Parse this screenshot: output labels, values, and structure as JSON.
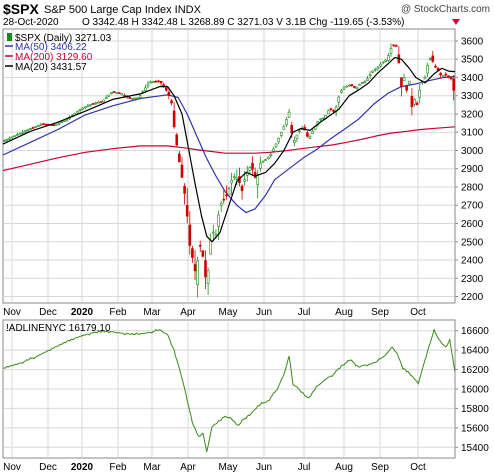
{
  "header": {
    "symbol": "$SPX",
    "name": "S&P 500 Large Cap Index INDX",
    "date": "28-Oct-2020",
    "quote": "O 3342.48  H 3342.48  L 3268.89  C 3271.03  V 3.1B  Chg -119.65 (-3.53%)",
    "watermark": "@ StockCharts.com"
  },
  "colors": {
    "price_up": "#1a8a1a",
    "price_down": "#cc0000",
    "ma50": "#3333aa",
    "ma200": "#cc0033",
    "ma20": "#000000",
    "breadth": "#3a8a1a",
    "grid": "#d8d8d8"
  },
  "chart_data": [
    {
      "type": "candlestick",
      "legend": [
        {
          "label": "$SPX (Daily) 3271.03",
          "color": "#1a8a1a",
          "marker": "candle"
        },
        {
          "label": "MA(50) 3406.22",
          "color": "#3333aa",
          "marker": "line"
        },
        {
          "label": "MA(200) 3129.60",
          "color": "#cc0033",
          "marker": "line"
        },
        {
          "label": "MA(20) 3431.57",
          "color": "#000000",
          "marker": "line"
        }
      ],
      "x_labels": [
        "Nov",
        "Dec",
        "2020",
        "Feb",
        "Mar",
        "Apr",
        "May",
        "Jun",
        "Jul",
        "Aug",
        "Sep",
        "Oct"
      ],
      "y_ticks": [
        2200,
        2300,
        2400,
        2500,
        2600,
        2700,
        2800,
        2900,
        3000,
        3100,
        3200,
        3300,
        3400,
        3500,
        3600
      ],
      "ylim": [
        2170,
        3660
      ],
      "close_path": [
        [
          0,
          3050
        ],
        [
          10,
          3085
        ],
        [
          21,
          3120
        ],
        [
          30,
          3145
        ],
        [
          40,
          3140
        ],
        [
          50,
          3175
        ],
        [
          60,
          3230
        ],
        [
          68,
          3255
        ],
        [
          76,
          3270
        ],
        [
          84,
          3325
        ],
        [
          91,
          3310
        ],
        [
          97,
          3285
        ],
        [
          104,
          3290
        ],
        [
          112,
          3375
        ],
        [
          120,
          3380
        ],
        [
          126,
          3320
        ],
        [
          129,
          3260
        ],
        [
          131,
          3130
        ],
        [
          134,
          2980
        ],
        [
          138,
          2810
        ],
        [
          140,
          2720
        ],
        [
          143,
          2480
        ],
        [
          146,
          2380
        ],
        [
          148,
          2300
        ],
        [
          150,
          2490
        ],
        [
          152,
          2460
        ],
        [
          154,
          2380
        ],
        [
          156,
          2235
        ],
        [
          158,
          2450
        ],
        [
          160,
          2560
        ],
        [
          163,
          2540
        ],
        [
          166,
          2700
        ],
        [
          170,
          2740
        ],
        [
          173,
          2790
        ],
        [
          176,
          2860
        ],
        [
          180,
          2845
        ],
        [
          183,
          2780
        ],
        [
          186,
          2870
        ],
        [
          190,
          2920
        ],
        [
          194,
          2830
        ],
        [
          197,
          2930
        ],
        [
          201,
          2950
        ],
        [
          205,
          2980
        ],
        [
          210,
          3050
        ],
        [
          215,
          3130
        ],
        [
          219,
          3210
        ],
        [
          222,
          3040
        ],
        [
          226,
          3100
        ],
        [
          230,
          3130
        ],
        [
          234,
          3060
        ],
        [
          238,
          3120
        ],
        [
          242,
          3170
        ],
        [
          246,
          3180
        ],
        [
          250,
          3230
        ],
        [
          254,
          3210
        ],
        [
          258,
          3320
        ],
        [
          262,
          3350
        ],
        [
          266,
          3360
        ],
        [
          270,
          3340
        ],
        [
          274,
          3370
        ],
        [
          278,
          3380
        ],
        [
          282,
          3430
        ],
        [
          286,
          3450
        ],
        [
          290,
          3480
        ],
        [
          294,
          3500
        ],
        [
          298,
          3580
        ],
        [
          301,
          3575
        ],
        [
          303,
          3480
        ],
        [
          305,
          3350
        ],
        [
          307,
          3400
        ],
        [
          309,
          3330
        ],
        [
          311,
          3380
        ],
        [
          313,
          3240
        ],
        [
          315,
          3280
        ],
        [
          317,
          3250
        ],
        [
          320,
          3370
        ],
        [
          323,
          3400
        ],
        [
          326,
          3500
        ],
        [
          328,
          3510
        ],
        [
          330,
          3465
        ],
        [
          333,
          3440
        ],
        [
          336,
          3400
        ],
        [
          338,
          3420
        ],
        [
          341,
          3400
        ],
        [
          344,
          3390
        ],
        [
          346,
          3270
        ]
      ],
      "ma50_path": [
        [
          0,
          2975
        ],
        [
          21,
          3045
        ],
        [
          42,
          3115
        ],
        [
          63,
          3195
        ],
        [
          84,
          3245
        ],
        [
          105,
          3285
        ],
        [
          126,
          3305
        ],
        [
          134,
          3290
        ],
        [
          141,
          3200
        ],
        [
          148,
          3085
        ],
        [
          156,
          2955
        ],
        [
          163,
          2860
        ],
        [
          170,
          2775
        ],
        [
          179,
          2700
        ],
        [
          186,
          2660
        ],
        [
          193,
          2680
        ],
        [
          201,
          2755
        ],
        [
          208,
          2840
        ],
        [
          219,
          2900
        ],
        [
          230,
          2960
        ],
        [
          240,
          3005
        ],
        [
          250,
          3060
        ],
        [
          261,
          3115
        ],
        [
          272,
          3170
        ],
        [
          284,
          3255
        ],
        [
          295,
          3315
        ],
        [
          305,
          3350
        ],
        [
          316,
          3365
        ],
        [
          326,
          3382
        ],
        [
          336,
          3398
        ],
        [
          346,
          3406
        ]
      ],
      "ma200_path": [
        [
          0,
          2890
        ],
        [
          21,
          2925
        ],
        [
          42,
          2960
        ],
        [
          63,
          2990
        ],
        [
          84,
          3010
        ],
        [
          105,
          3025
        ],
        [
          126,
          3025
        ],
        [
          138,
          3015
        ],
        [
          148,
          3005
        ],
        [
          159,
          2995
        ],
        [
          170,
          2985
        ],
        [
          182,
          2985
        ],
        [
          193,
          2985
        ],
        [
          205,
          2990
        ],
        [
          216,
          2998
        ],
        [
          228,
          3010
        ],
        [
          240,
          3020
        ],
        [
          252,
          3030
        ],
        [
          263,
          3045
        ],
        [
          274,
          3060
        ],
        [
          286,
          3080
        ],
        [
          297,
          3095
        ],
        [
          309,
          3105
        ],
        [
          320,
          3115
        ],
        [
          332,
          3122
        ],
        [
          346,
          3130
        ]
      ],
      "ma20_path": [
        [
          0,
          3035
        ],
        [
          21,
          3105
        ],
        [
          42,
          3155
        ],
        [
          63,
          3215
        ],
        [
          84,
          3280
        ],
        [
          105,
          3310
        ],
        [
          120,
          3350
        ],
        [
          126,
          3350
        ],
        [
          131,
          3300
        ],
        [
          137,
          3200
        ],
        [
          141,
          3050
        ],
        [
          147,
          2820
        ],
        [
          152,
          2640
        ],
        [
          156,
          2530
        ],
        [
          160,
          2500
        ],
        [
          166,
          2550
        ],
        [
          173,
          2700
        ],
        [
          179,
          2830
        ],
        [
          186,
          2880
        ],
        [
          193,
          2860
        ],
        [
          201,
          2880
        ],
        [
          208,
          2930
        ],
        [
          215,
          3000
        ],
        [
          222,
          3100
        ],
        [
          228,
          3120
        ],
        [
          235,
          3110
        ],
        [
          242,
          3150
        ],
        [
          250,
          3190
        ],
        [
          257,
          3225
        ],
        [
          265,
          3300
        ],
        [
          272,
          3330
        ],
        [
          280,
          3370
        ],
        [
          287,
          3425
        ],
        [
          294,
          3470
        ],
        [
          300,
          3510
        ],
        [
          305,
          3500
        ],
        [
          311,
          3450
        ],
        [
          316,
          3400
        ],
        [
          323,
          3370
        ],
        [
          330,
          3420
        ],
        [
          336,
          3450
        ],
        [
          341,
          3435
        ],
        [
          346,
          3432
        ]
      ]
    },
    {
      "type": "line",
      "title": "!ADLINENYC 16179.10",
      "x_labels": [
        "Nov",
        "Dec",
        "2020",
        "Feb",
        "Mar",
        "Apr",
        "May",
        "Jun",
        "Jul",
        "Aug",
        "Sep",
        "Oct"
      ],
      "y_ticks": [
        15400,
        15600,
        15800,
        16000,
        16200,
        16400,
        16600
      ],
      "ylim": [
        15300,
        16700
      ],
      "path": [
        [
          0,
          16210
        ],
        [
          12,
          16260
        ],
        [
          25,
          16330
        ],
        [
          38,
          16420
        ],
        [
          50,
          16500
        ],
        [
          63,
          16560
        ],
        [
          76,
          16600
        ],
        [
          88,
          16580
        ],
        [
          100,
          16560
        ],
        [
          112,
          16580
        ],
        [
          120,
          16610
        ],
        [
          126,
          16560
        ],
        [
          131,
          16400
        ],
        [
          136,
          16160
        ],
        [
          140,
          15950
        ],
        [
          145,
          15650
        ],
        [
          150,
          15500
        ],
        [
          153,
          15550
        ],
        [
          156,
          15350
        ],
        [
          160,
          15610
        ],
        [
          165,
          15660
        ],
        [
          170,
          15720
        ],
        [
          175,
          15690
        ],
        [
          180,
          15620
        ],
        [
          185,
          15700
        ],
        [
          190,
          15750
        ],
        [
          197,
          15840
        ],
        [
          203,
          15880
        ],
        [
          210,
          16000
        ],
        [
          216,
          16180
        ],
        [
          219,
          16350
        ],
        [
          222,
          16050
        ],
        [
          228,
          15980
        ],
        [
          234,
          15900
        ],
        [
          240,
          16020
        ],
        [
          247,
          16100
        ],
        [
          253,
          16150
        ],
        [
          259,
          16240
        ],
        [
          266,
          16300
        ],
        [
          272,
          16230
        ],
        [
          279,
          16250
        ],
        [
          286,
          16280
        ],
        [
          292,
          16340
        ],
        [
          298,
          16430
        ],
        [
          302,
          16360
        ],
        [
          306,
          16220
        ],
        [
          310,
          16180
        ],
        [
          314,
          16120
        ],
        [
          318,
          16060
        ],
        [
          321,
          16200
        ],
        [
          324,
          16350
        ],
        [
          327,
          16480
        ],
        [
          330,
          16600
        ],
        [
          333,
          16530
        ],
        [
          336,
          16470
        ],
        [
          339,
          16430
        ],
        [
          342,
          16500
        ],
        [
          346,
          16180
        ]
      ]
    }
  ]
}
